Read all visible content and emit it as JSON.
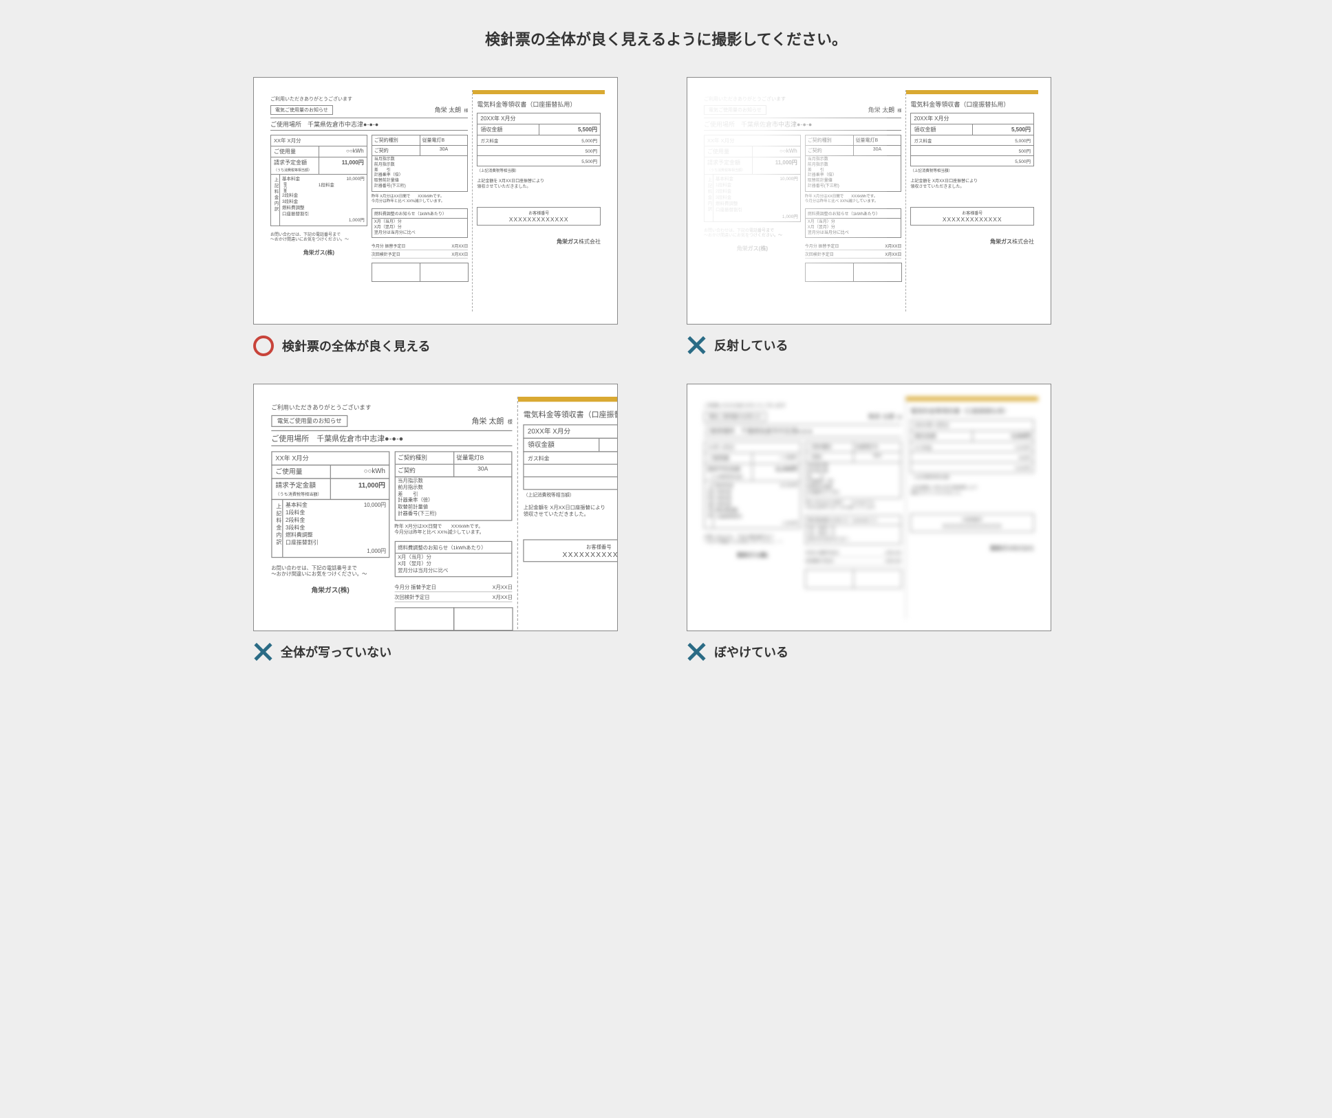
{
  "instruction": "検針票の全体が良く見えるように撮影してください。",
  "captions": {
    "ok": "検針票の全体が良く見える",
    "reflect": "反射している",
    "cut": "全体が写っていない",
    "blur": "ぼやけている"
  },
  "colors": {
    "page_bg": "#eeeeee",
    "frame_border": "#888888",
    "ok_ring": "#c8433a",
    "x_mark": "#2a6b85",
    "gold_bar": "#d9a932",
    "text": "#555555"
  },
  "slip": {
    "greeting": "ご利用いただきありがとうございます",
    "notice_label": "電気ご使用量のお知らせ",
    "customer_name": "角栄 太朗",
    "sama": "様",
    "location_label": "ご使用場所",
    "location_value": "千葉県佐倉市中志津●-●-●",
    "period": "XX年 X月分",
    "usage_label": "ご使用量",
    "usage_value": "○○kWh",
    "bill_label": "請求予定金額",
    "bill_note": "（うち消費税等相当額）",
    "bill_amount": "11,000円",
    "breakdown_label": "上記料金内訳",
    "breakdown_sublabel": "電力量",
    "breakdown": {
      "base": "基本料金",
      "t1": "1段料金",
      "t2": "2段料金",
      "t3": "3段料金",
      "fuel": "燃料費調整",
      "disc": "口座振替割引",
      "v1": "10,000円",
      "v2": "1,000円"
    },
    "contact": "お問い合わせは、下記の電話番号まで\n～おかけ間違いにお気をつけください。～",
    "logo_left": "角栄ガス(株)",
    "contract_type_label": "ご契約種別",
    "contract_type_value": "従量電灯B",
    "contract_label": "ご契約",
    "contract_value": "30A",
    "meter": {
      "l1": "当月指示数",
      "l2": "前月指示数",
      "l3": "差　　引",
      "l4": "計器乗率（倍）",
      "l5": "取替前計量値",
      "l6": "計器番号(下三桁)"
    },
    "meter_note": "昨年 X月分はXX日間で　　XXXkWhです。\n今月分は昨年と比べ XX%減少しています。",
    "adjust_header": "燃料費調整のお知らせ（1kWhあたり）",
    "adjust_body": "X月（当月）分\nX月（翌月）分\n翌月分は当月分に比べ",
    "sched1_label": "今月分  振替予定日",
    "sched1_value": "X月XX日",
    "sched2_label": "次回検針予定日",
    "sched2_value": "X月XX日",
    "receipt_title": "電気料金等領収書（口座振替払用）",
    "receipt_period": "20XX年 X月分",
    "receipt_amt_label": "領収金額",
    "receipt_amt_value": "5,500円",
    "receipt_rows": {
      "gas_label": "ガス料金",
      "gas_value": "5,000円",
      "blank_value": "500円",
      "total_value": "5,500円"
    },
    "receipt_tax": "（上記消費税等相当額）",
    "receipt_note": "上記金額を X月XX日口座振替により\n領収させていただきました。",
    "cust_label": "お客様番号",
    "cust_number": "XXXXXXXXXXXXX",
    "logo_right_a": "角栄ガス",
    "logo_right_b": "株式会社"
  }
}
